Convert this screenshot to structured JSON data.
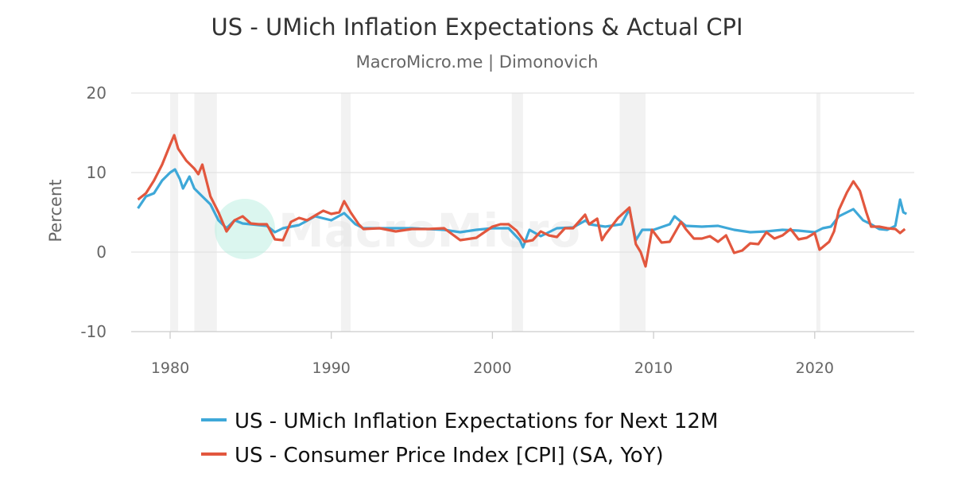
{
  "chart_data": {
    "type": "line",
    "title": "US - UMich Inflation Expectations & Actual CPI",
    "subtitle": "MacroMicro.me | Dimonovich",
    "ylabel": "Percent",
    "xlabel": "",
    "xlim": [
      1977.5,
      2026.1
    ],
    "ylim": [
      -10,
      20
    ],
    "yticks": [
      20,
      10,
      0,
      -10
    ],
    "xticks": [
      1980,
      1990,
      2000,
      2010,
      2020
    ],
    "grid": "horizontal",
    "legend_placement": "bottom",
    "watermark": "MacroMicro",
    "recessions": [
      [
        1980.0,
        1980.5
      ],
      [
        1981.5,
        1982.9
      ],
      [
        1990.6,
        1991.2
      ],
      [
        2001.2,
        2001.9
      ],
      [
        2007.9,
        2009.5
      ],
      [
        2020.1,
        2020.35
      ]
    ],
    "recession_color": "#f2f2f2",
    "series": [
      {
        "name": "US - UMich Inflation Expectations for Next 12M",
        "color": "#3ea8d8",
        "points": [
          [
            1978.0,
            5.5
          ],
          [
            1978.5,
            7.0
          ],
          [
            1979.0,
            7.4
          ],
          [
            1979.5,
            9.0
          ],
          [
            1980.0,
            10.0
          ],
          [
            1980.3,
            10.4
          ],
          [
            1980.6,
            9.2
          ],
          [
            1980.8,
            8.0
          ],
          [
            1981.2,
            9.5
          ],
          [
            1981.5,
            8.0
          ],
          [
            1982.0,
            7.0
          ],
          [
            1982.5,
            6.0
          ],
          [
            1983.0,
            4.0
          ],
          [
            1983.5,
            3.0
          ],
          [
            1984.0,
            4.0
          ],
          [
            1984.5,
            3.6
          ],
          [
            1985.0,
            3.5
          ],
          [
            1986.0,
            3.3
          ],
          [
            1986.5,
            2.5
          ],
          [
            1987.0,
            3.0
          ],
          [
            1988.0,
            3.4
          ],
          [
            1989.0,
            4.5
          ],
          [
            1990.0,
            4.0
          ],
          [
            1990.8,
            4.9
          ],
          [
            1991.5,
            3.5
          ],
          [
            1992.0,
            3.0
          ],
          [
            1993.0,
            3.0
          ],
          [
            1994.0,
            3.0
          ],
          [
            1995.0,
            3.0
          ],
          [
            1996.0,
            2.9
          ],
          [
            1997.0,
            2.8
          ],
          [
            1998.0,
            2.5
          ],
          [
            1999.0,
            2.8
          ],
          [
            2000.0,
            3.0
          ],
          [
            2001.0,
            3.0
          ],
          [
            2001.7,
            1.5
          ],
          [
            2001.9,
            0.6
          ],
          [
            2002.3,
            2.8
          ],
          [
            2003.0,
            2.0
          ],
          [
            2004.0,
            3.0
          ],
          [
            2005.0,
            3.1
          ],
          [
            2005.8,
            4.0
          ],
          [
            2006.0,
            3.5
          ],
          [
            2007.0,
            3.2
          ],
          [
            2008.0,
            3.5
          ],
          [
            2008.5,
            5.4
          ],
          [
            2008.9,
            1.5
          ],
          [
            2009.3,
            2.8
          ],
          [
            2010.0,
            2.8
          ],
          [
            2011.0,
            3.5
          ],
          [
            2011.3,
            4.5
          ],
          [
            2012.0,
            3.3
          ],
          [
            2013.0,
            3.2
          ],
          [
            2014.0,
            3.3
          ],
          [
            2015.0,
            2.8
          ],
          [
            2016.0,
            2.5
          ],
          [
            2017.0,
            2.6
          ],
          [
            2018.0,
            2.8
          ],
          [
            2019.0,
            2.7
          ],
          [
            2020.0,
            2.5
          ],
          [
            2020.5,
            3.0
          ],
          [
            2021.0,
            3.2
          ],
          [
            2021.5,
            4.5
          ],
          [
            2022.0,
            5.0
          ],
          [
            2022.4,
            5.4
          ],
          [
            2023.0,
            4.0
          ],
          [
            2023.5,
            3.5
          ],
          [
            2024.0,
            2.9
          ],
          [
            2024.5,
            2.8
          ],
          [
            2025.0,
            3.3
          ],
          [
            2025.3,
            6.6
          ],
          [
            2025.5,
            5.0
          ],
          [
            2025.7,
            4.8
          ]
        ]
      },
      {
        "name": "US - Consumer Price Index [CPI] (SA, YoY)",
        "color": "#e2573e",
        "points": [
          [
            1978.0,
            6.6
          ],
          [
            1978.5,
            7.4
          ],
          [
            1979.0,
            9.0
          ],
          [
            1979.5,
            11.0
          ],
          [
            1980.0,
            13.5
          ],
          [
            1980.25,
            14.7
          ],
          [
            1980.5,
            13.0
          ],
          [
            1981.0,
            11.5
          ],
          [
            1981.5,
            10.5
          ],
          [
            1981.75,
            9.8
          ],
          [
            1982.0,
            11.0
          ],
          [
            1982.5,
            7.0
          ],
          [
            1983.0,
            5.0
          ],
          [
            1983.5,
            2.6
          ],
          [
            1984.0,
            4.0
          ],
          [
            1984.5,
            4.5
          ],
          [
            1985.0,
            3.6
          ],
          [
            1985.5,
            3.5
          ],
          [
            1986.0,
            3.5
          ],
          [
            1986.5,
            1.6
          ],
          [
            1987.0,
            1.5
          ],
          [
            1987.5,
            3.8
          ],
          [
            1988.0,
            4.3
          ],
          [
            1988.5,
            4.0
          ],
          [
            1989.0,
            4.6
          ],
          [
            1989.5,
            5.2
          ],
          [
            1990.0,
            4.8
          ],
          [
            1990.5,
            5.0
          ],
          [
            1990.8,
            6.4
          ],
          [
            1991.2,
            5.0
          ],
          [
            1991.7,
            3.5
          ],
          [
            1992.0,
            2.9
          ],
          [
            1993.0,
            3.0
          ],
          [
            1994.0,
            2.6
          ],
          [
            1995.0,
            2.9
          ],
          [
            1996.0,
            2.9
          ],
          [
            1997.0,
            3.0
          ],
          [
            1998.0,
            1.5
          ],
          [
            1999.0,
            1.8
          ],
          [
            2000.0,
            3.2
          ],
          [
            2000.5,
            3.5
          ],
          [
            2001.0,
            3.5
          ],
          [
            2001.5,
            2.7
          ],
          [
            2002.0,
            1.3
          ],
          [
            2002.5,
            1.5
          ],
          [
            2003.0,
            2.6
          ],
          [
            2003.5,
            2.1
          ],
          [
            2004.0,
            1.9
          ],
          [
            2004.5,
            3.0
          ],
          [
            2005.0,
            3.0
          ],
          [
            2005.75,
            4.7
          ],
          [
            2006.0,
            3.5
          ],
          [
            2006.5,
            4.2
          ],
          [
            2006.8,
            1.5
          ],
          [
            2007.0,
            2.2
          ],
          [
            2007.8,
            4.3
          ],
          [
            2008.5,
            5.6
          ],
          [
            2008.9,
            1.0
          ],
          [
            2009.2,
            0.0
          ],
          [
            2009.5,
            -1.8
          ],
          [
            2009.9,
            2.8
          ],
          [
            2010.5,
            1.2
          ],
          [
            2011.0,
            1.3
          ],
          [
            2011.7,
            3.8
          ],
          [
            2012.0,
            2.9
          ],
          [
            2012.5,
            1.7
          ],
          [
            2013.0,
            1.7
          ],
          [
            2013.5,
            2.0
          ],
          [
            2014.0,
            1.3
          ],
          [
            2014.5,
            2.1
          ],
          [
            2015.0,
            -0.1
          ],
          [
            2015.5,
            0.2
          ],
          [
            2016.0,
            1.1
          ],
          [
            2016.5,
            1.0
          ],
          [
            2017.0,
            2.5
          ],
          [
            2017.5,
            1.7
          ],
          [
            2018.0,
            2.1
          ],
          [
            2018.5,
            2.9
          ],
          [
            2019.0,
            1.6
          ],
          [
            2019.5,
            1.8
          ],
          [
            2020.0,
            2.4
          ],
          [
            2020.3,
            0.3
          ],
          [
            2020.9,
            1.3
          ],
          [
            2021.2,
            2.6
          ],
          [
            2021.5,
            5.3
          ],
          [
            2022.0,
            7.5
          ],
          [
            2022.4,
            8.9
          ],
          [
            2022.8,
            7.7
          ],
          [
            2023.2,
            5.0
          ],
          [
            2023.5,
            3.2
          ],
          [
            2024.0,
            3.2
          ],
          [
            2024.5,
            3.0
          ],
          [
            2025.0,
            2.9
          ],
          [
            2025.3,
            2.4
          ],
          [
            2025.6,
            2.9
          ]
        ]
      }
    ]
  }
}
